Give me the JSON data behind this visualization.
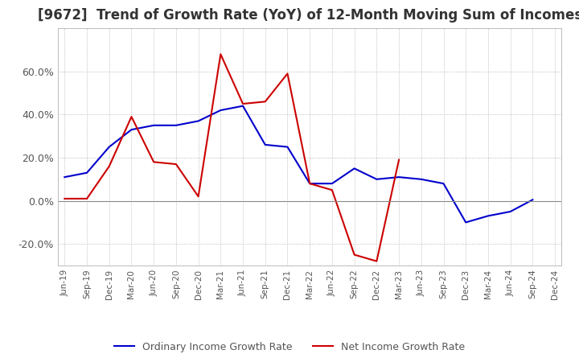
{
  "title": "[9672]  Trend of Growth Rate (YoY) of 12-Month Moving Sum of Incomes",
  "title_fontsize": 12,
  "ylim": [
    -30,
    80
  ],
  "yticks": [
    -20.0,
    0.0,
    20.0,
    40.0,
    60.0
  ],
  "background_color": "#ffffff",
  "grid_color": "#aaaaaa",
  "legend_labels": [
    "Ordinary Income Growth Rate",
    "Net Income Growth Rate"
  ],
  "line_colors": [
    "#0000cc",
    "#cc0000"
  ],
  "x_labels": [
    "Jun-19",
    "Sep-19",
    "Dec-19",
    "Mar-20",
    "Jun-20",
    "Sep-20",
    "Dec-20",
    "Mar-21",
    "Jun-21",
    "Sep-21",
    "Dec-21",
    "Mar-22",
    "Jun-22",
    "Sep-22",
    "Dec-22",
    "Mar-23",
    "Jun-23",
    "Sep-23",
    "Dec-23",
    "Mar-24",
    "Jun-24",
    "Sep-24",
    "Dec-24"
  ],
  "ordinary_income": [
    11.0,
    13.0,
    25.0,
    33.0,
    35.0,
    35.0,
    37.0,
    42.0,
    44.0,
    26.0,
    25.0,
    8.0,
    8.0,
    15.0,
    10.0,
    11.0,
    10.0,
    8.0,
    -10.0,
    -7.0,
    -5.0,
    0.5,
    null
  ],
  "net_income": [
    1.0,
    1.0,
    16.0,
    39.0,
    18.0,
    17.0,
    2.0,
    68.0,
    45.0,
    46.0,
    59.0,
    8.0,
    5.0,
    -25.0,
    -28.0,
    19.0,
    null,
    null,
    null,
    null,
    null,
    null,
    null
  ]
}
